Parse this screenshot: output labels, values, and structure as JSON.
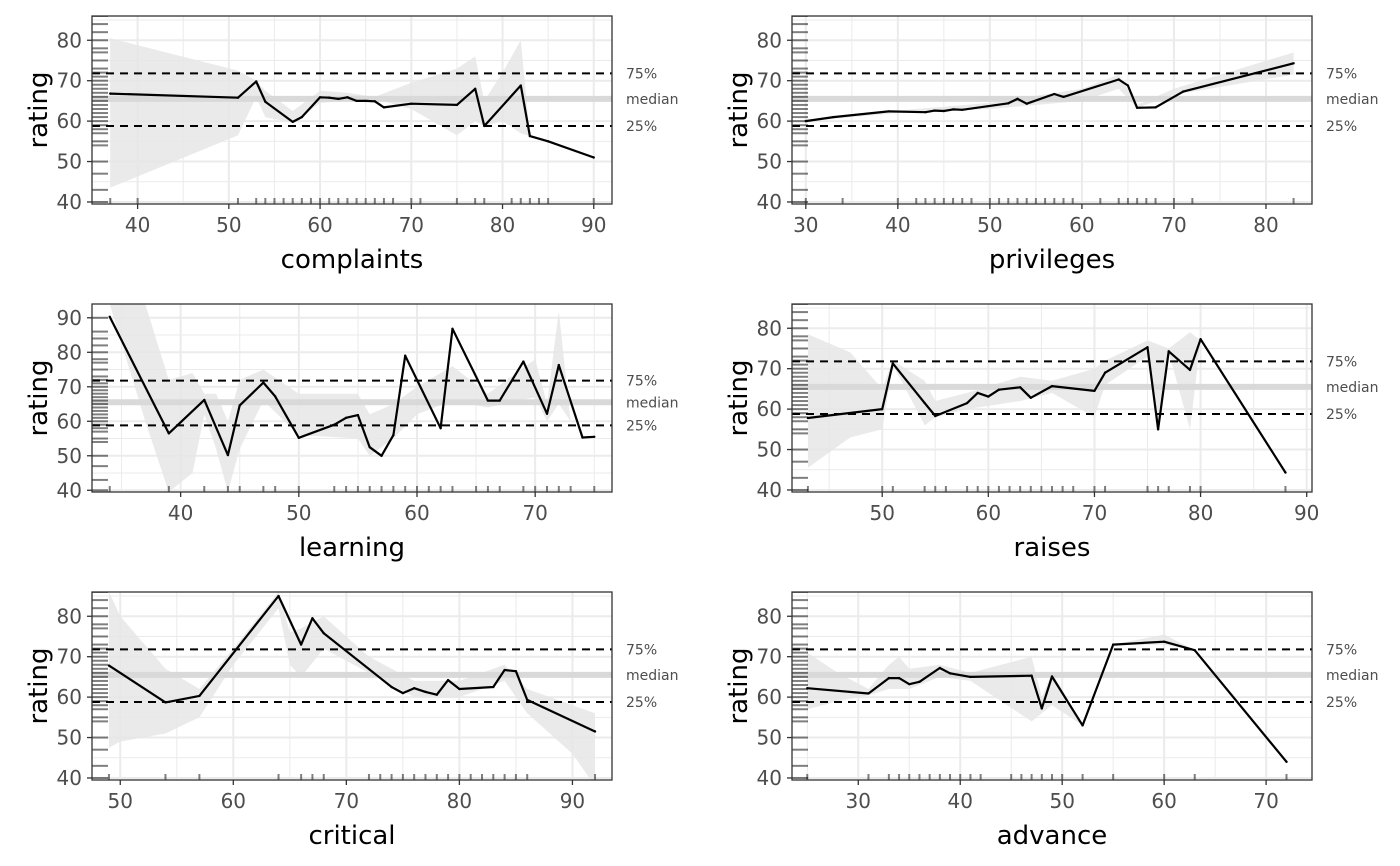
{
  "chart_data": [
    {
      "type": "line",
      "xlabel": "complaints",
      "ylabel": "rating",
      "xlim": [
        35,
        92
      ],
      "ylim": [
        39.5,
        86
      ],
      "xticks": [
        40,
        50,
        60,
        70,
        80,
        90
      ],
      "yticks": [
        40,
        50,
        60,
        70,
        80
      ],
      "ref_lines": {
        "p75": 71.8,
        "median": 65.5,
        "p25": 58.8,
        "labels": [
          "75%",
          "median",
          "25%"
        ]
      },
      "line": {
        "x": [
          37,
          51,
          53,
          54,
          57,
          58,
          60,
          61,
          62,
          63,
          64,
          65,
          66,
          67,
          70,
          75,
          77,
          78,
          82,
          83,
          85,
          90
        ],
        "y": [
          66.8,
          65.8,
          69.8,
          64.8,
          59.8,
          61.0,
          65.9,
          65.8,
          65.5,
          65.9,
          65.0,
          65.0,
          64.9,
          63.4,
          64.3,
          64.0,
          68.0,
          58.8,
          68.8,
          56.3,
          55.0,
          51.0
        ]
      },
      "band": {
        "x": [
          37,
          51,
          53,
          54,
          57,
          60,
          63,
          66,
          70,
          75,
          77,
          78,
          80,
          82,
          83
        ],
        "lower": [
          43.5,
          56.5,
          66.0,
          61.0,
          59.5,
          64.5,
          65.0,
          65.5,
          63.0,
          56.5,
          60.0,
          58.8,
          60.0,
          57.0,
          56.3
        ],
        "upper": [
          80.5,
          72.5,
          70.0,
          67.5,
          62.5,
          67.5,
          67.0,
          66.0,
          69.5,
          73.0,
          76.0,
          65.0,
          72.0,
          80.0,
          56.3
        ]
      },
      "rug_x": [
        37,
        40,
        51,
        53,
        54,
        55,
        56,
        57,
        58,
        59,
        60,
        61,
        62,
        63,
        64,
        65,
        66,
        67,
        68,
        70,
        71,
        75,
        77,
        78,
        81,
        82,
        83,
        84,
        85,
        90
      ]
    },
    {
      "type": "line",
      "xlabel": "privileges",
      "ylabel": "rating",
      "xlim": [
        28.5,
        85
      ],
      "ylim": [
        39.5,
        86
      ],
      "xticks": [
        30,
        40,
        50,
        60,
        70,
        80
      ],
      "yticks": [
        40,
        50,
        60,
        70,
        80
      ],
      "ref_lines": {
        "p75": 71.8,
        "median": 65.5,
        "p25": 58.8,
        "labels": [
          "75%",
          "median",
          "25%"
        ]
      },
      "line": {
        "x": [
          30,
          33,
          39,
          43,
          44,
          45,
          46,
          47,
          52,
          53,
          54,
          57,
          58,
          64,
          65,
          66,
          68,
          71,
          83
        ],
        "y": [
          60.0,
          61.0,
          62.4,
          62.2,
          62.6,
          62.5,
          62.9,
          62.8,
          64.4,
          65.5,
          64.3,
          66.7,
          66.0,
          70.3,
          68.8,
          63.3,
          63.4,
          67.3,
          74.3
        ]
      },
      "band": {
        "x": [
          30,
          40,
          50,
          60,
          64,
          66,
          70,
          83
        ],
        "lower": [
          60.0,
          62.0,
          63.0,
          65.0,
          68.0,
          63.3,
          66.5,
          71.5
        ],
        "upper": [
          60.0,
          62.6,
          64.5,
          68.0,
          71.5,
          64.0,
          68.0,
          77.0
        ]
      },
      "rug_x": [
        30,
        34,
        40,
        42,
        43,
        44,
        45,
        46,
        47,
        48,
        50,
        51,
        52,
        53,
        54,
        55,
        56,
        57,
        58,
        59,
        62,
        64,
        65,
        66,
        67,
        68,
        70,
        72,
        83
      ]
    },
    {
      "type": "line",
      "xlabel": "learning",
      "ylabel": "rating",
      "xlim": [
        32.5,
        76.5
      ],
      "ylim": [
        39.5,
        94
      ],
      "xticks": [
        40,
        50,
        60,
        70
      ],
      "yticks": [
        40,
        50,
        60,
        70,
        80,
        90
      ],
      "ref_lines": {
        "p75": 71.8,
        "median": 65.5,
        "p25": 58.8,
        "labels": [
          "75%",
          "median",
          "25%"
        ]
      },
      "line": {
        "x": [
          34,
          39,
          42,
          44,
          45,
          47,
          48,
          50,
          53,
          54,
          55,
          56,
          57,
          58,
          59,
          62,
          63,
          66,
          67,
          69,
          71,
          72,
          74,
          75
        ],
        "y": [
          90.3,
          56.5,
          66.2,
          50.2,
          64.6,
          71.2,
          67.2,
          55.2,
          59.0,
          61.0,
          61.8,
          52.5,
          50.0,
          56.0,
          79.0,
          58.0,
          86.8,
          66.0,
          66.0,
          77.3,
          62.2,
          76.3,
          55.3,
          55.5
        ]
      },
      "band": {
        "x": [
          34,
          37,
          39,
          41,
          42,
          43,
          44,
          45,
          47,
          50,
          55,
          56,
          58,
          60,
          63,
          66,
          70,
          71,
          72,
          73
        ],
        "lower": [
          94.0,
          60.0,
          39.5,
          45.0,
          62.0,
          52.0,
          39.5,
          52.0,
          66.0,
          56.0,
          55.0,
          50.0,
          55.0,
          62.0,
          66.0,
          64.0,
          67.0,
          60.0,
          65.0,
          60.0
        ],
        "upper": [
          94.0,
          94.0,
          72.0,
          74.0,
          68.0,
          68.0,
          60.0,
          72.0,
          75.0,
          68.0,
          68.0,
          62.0,
          65.0,
          70.0,
          76.0,
          68.0,
          78.0,
          65.0,
          92.0,
          60.0
        ]
      },
      "rug_x": [
        34,
        39,
        42,
        44,
        45,
        47,
        48,
        50,
        53,
        54,
        55,
        56,
        57,
        58,
        59,
        60,
        61,
        62,
        63,
        65,
        66,
        67,
        69,
        70,
        71,
        72,
        73,
        75
      ]
    },
    {
      "type": "line",
      "xlabel": "raises",
      "ylabel": "rating",
      "xlim": [
        41.5,
        90.5
      ],
      "ylim": [
        39.5,
        86
      ],
      "xticks": [
        50,
        60,
        70,
        80,
        90
      ],
      "yticks": [
        40,
        50,
        60,
        70,
        80
      ],
      "ref_lines": {
        "p75": 71.8,
        "median": 65.5,
        "p25": 58.8,
        "labels": [
          "75%",
          "median",
          "25%"
        ]
      },
      "line": {
        "x": [
          43,
          50,
          51,
          54,
          55,
          58,
          59,
          60,
          61,
          63,
          64,
          66,
          70,
          71,
          75,
          76,
          77,
          79,
          80,
          88
        ],
        "y": [
          57.8,
          60.0,
          71.3,
          61.5,
          58.3,
          61.5,
          64.0,
          63.1,
          64.8,
          65.4,
          62.8,
          65.7,
          64.5,
          69.0,
          75.3,
          55.0,
          74.3,
          69.7,
          77.3,
          44.3
        ]
      },
      "band": {
        "x": [
          43,
          47,
          50,
          51,
          54,
          55,
          58,
          63,
          66,
          70,
          71,
          75,
          76,
          77,
          79,
          80
        ],
        "lower": [
          45.5,
          53.0,
          55.0,
          71.0,
          56.0,
          58.0,
          60.0,
          62.0,
          64.0,
          58.0,
          66.0,
          73.0,
          55.0,
          74.0,
          55.0,
          77.0
        ],
        "upper": [
          78.5,
          74.0,
          65.0,
          72.0,
          67.0,
          62.0,
          64.0,
          68.0,
          67.0,
          70.0,
          72.0,
          77.0,
          76.0,
          75.0,
          79.0,
          77.0
        ]
      },
      "rug_x": [
        43,
        50,
        51,
        54,
        55,
        56,
        58,
        59,
        60,
        61,
        62,
        63,
        64,
        65,
        66,
        67,
        68,
        70,
        71,
        75,
        76,
        77,
        79,
        80,
        88
      ]
    },
    {
      "type": "line",
      "xlabel": "critical",
      "ylabel": "rating",
      "xlim": [
        47.5,
        93.5
      ],
      "ylim": [
        39.5,
        86
      ],
      "xticks": [
        50,
        60,
        70,
        80,
        90
      ],
      "yticks": [
        40,
        50,
        60,
        70,
        80
      ],
      "ref_lines": {
        "p75": 71.8,
        "median": 65.5,
        "p25": 58.8,
        "labels": [
          "75%",
          "median",
          "25%"
        ]
      },
      "line": {
        "x": [
          49,
          54,
          57,
          64,
          66,
          67,
          68,
          74,
          75,
          76,
          77,
          78,
          79,
          80,
          83,
          84,
          85,
          86,
          92
        ],
        "y": [
          67.8,
          58.7,
          60.3,
          85.0,
          73.0,
          79.5,
          75.8,
          62.5,
          61.0,
          62.2,
          61.3,
          60.6,
          64.2,
          62.0,
          62.5,
          66.7,
          66.4,
          59.3,
          51.5
        ]
      },
      "band": {
        "x": [
          49,
          50,
          54,
          57,
          60,
          64,
          65,
          66,
          68,
          72,
          76,
          80,
          84,
          86,
          90,
          92
        ],
        "lower": [
          47.5,
          49.0,
          51.0,
          55.0,
          68.0,
          82.0,
          68.0,
          65.0,
          72.0,
          66.0,
          60.0,
          60.0,
          64.0,
          56.0,
          46.0,
          38.0
        ],
        "upper": [
          86.0,
          80.0,
          67.0,
          62.0,
          72.0,
          86.0,
          76.0,
          77.0,
          80.0,
          70.0,
          64.0,
          64.0,
          68.0,
          62.0,
          58.0,
          56.0
        ]
      },
      "rug_x": [
        49,
        54,
        57,
        64,
        66,
        67,
        68,
        72,
        73,
        74,
        75,
        76,
        77,
        78,
        79,
        80,
        81,
        82,
        83,
        84,
        85,
        86,
        92
      ]
    },
    {
      "type": "line",
      "xlabel": "advance",
      "ylabel": "rating",
      "xlim": [
        23.5,
        74.5
      ],
      "ylim": [
        39.5,
        86
      ],
      "xticks": [
        30,
        40,
        50,
        60,
        70
      ],
      "yticks": [
        40,
        50,
        60,
        70,
        80
      ],
      "ref_lines": {
        "p75": 71.8,
        "median": 65.5,
        "p25": 58.8,
        "labels": [
          "75%",
          "median",
          "25%"
        ]
      },
      "line": {
        "x": [
          25,
          31,
          33,
          34,
          35,
          36,
          38,
          39,
          41,
          47,
          48,
          49,
          52,
          55,
          60,
          63,
          72
        ],
        "y": [
          62.2,
          60.9,
          64.7,
          64.7,
          63.2,
          63.8,
          67.2,
          65.9,
          65.0,
          65.3,
          57.2,
          65.1,
          53.0,
          73.0,
          73.7,
          71.6,
          44.0
        ]
      },
      "band": {
        "x": [
          25,
          28,
          31,
          33,
          34,
          35,
          38,
          41,
          47,
          48,
          49,
          52,
          55,
          60,
          63
        ],
        "lower": [
          57.0,
          59.0,
          60.5,
          62.0,
          62.0,
          62.0,
          65.0,
          64.0,
          54.0,
          56.0,
          58.0,
          53.0,
          73.0,
          73.0,
          71.6
        ],
        "upper": [
          71.0,
          66.0,
          62.0,
          68.0,
          70.0,
          67.0,
          68.0,
          66.0,
          70.0,
          60.0,
          66.0,
          53.0,
          73.0,
          75.5,
          71.6
        ]
      },
      "rug_x": [
        25,
        31,
        33,
        34,
        35,
        36,
        37,
        38,
        39,
        40,
        41,
        42,
        45,
        46,
        47,
        48,
        49,
        50,
        52,
        55,
        60,
        63,
        72
      ]
    }
  ],
  "rug_y": [
    40,
    43,
    47,
    50,
    54,
    55,
    57,
    58,
    59,
    60,
    61,
    62,
    63,
    64,
    65,
    66,
    67,
    68,
    69,
    70,
    71,
    72,
    73,
    75,
    77,
    78,
    80,
    82,
    84,
    86,
    90
  ]
}
